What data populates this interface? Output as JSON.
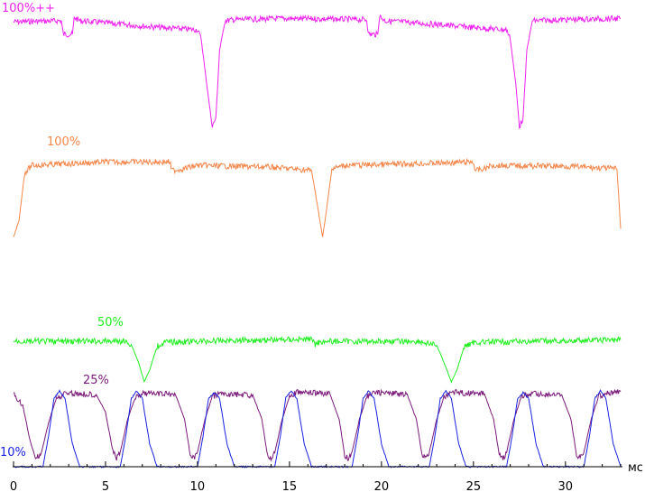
{
  "chart_data": {
    "type": "line",
    "title": "",
    "xlabel": "мс",
    "ylabel": "",
    "xlim": [
      0,
      33
    ],
    "xticks": [
      0,
      5,
      10,
      15,
      20,
      25,
      30
    ],
    "grid": false,
    "legend": "none",
    "series": [
      {
        "name": "100%++",
        "color": "#ee22ee",
        "baseline": 0.96,
        "points": [
          [
            0,
            0.95
          ],
          [
            2.6,
            0.96
          ],
          [
            2.7,
            0.84
          ],
          [
            3.2,
            0.84
          ],
          [
            3.3,
            0.99
          ],
          [
            3.6,
            0.96
          ],
          [
            5,
            0.94
          ],
          [
            8,
            0.9
          ],
          [
            10.0,
            0.88
          ],
          [
            10.2,
            0.8
          ],
          [
            10.5,
            0.4
          ],
          [
            10.8,
            0.02
          ],
          [
            11.0,
            0.1
          ],
          [
            11.2,
            0.7
          ],
          [
            11.5,
            0.96
          ],
          [
            12,
            0.97
          ],
          [
            15,
            0.98
          ],
          [
            19.2,
            0.97
          ],
          [
            19.3,
            0.84
          ],
          [
            19.8,
            0.84
          ],
          [
            19.9,
            1.0
          ],
          [
            20.2,
            0.96
          ],
          [
            22,
            0.94
          ],
          [
            25,
            0.9
          ],
          [
            26.8,
            0.88
          ],
          [
            27.0,
            0.8
          ],
          [
            27.3,
            0.4
          ],
          [
            27.5,
            0.02
          ],
          [
            27.7,
            0.1
          ],
          [
            27.9,
            0.7
          ],
          [
            28.2,
            0.96
          ],
          [
            30,
            0.97
          ],
          [
            33,
            0.98
          ]
        ]
      },
      {
        "name": "100%",
        "color": "#f4864a",
        "baseline": 0.8,
        "points": [
          [
            0,
            0.0
          ],
          [
            0.3,
            0.2
          ],
          [
            0.6,
            0.75
          ],
          [
            1.0,
            0.84
          ],
          [
            3,
            0.86
          ],
          [
            5,
            0.88
          ],
          [
            8.5,
            0.88
          ],
          [
            8.6,
            0.78
          ],
          [
            9.2,
            0.8
          ],
          [
            10,
            0.84
          ],
          [
            14,
            0.82
          ],
          [
            16.2,
            0.78
          ],
          [
            16.5,
            0.4
          ],
          [
            16.8,
            0.0
          ],
          [
            17.0,
            0.3
          ],
          [
            17.3,
            0.8
          ],
          [
            18,
            0.84
          ],
          [
            22,
            0.86
          ],
          [
            25.0,
            0.88
          ],
          [
            25.1,
            0.78
          ],
          [
            25.6,
            0.8
          ],
          [
            26,
            0.84
          ],
          [
            30,
            0.83
          ],
          [
            32.8,
            0.8
          ],
          [
            33.0,
            0.1
          ]
        ]
      },
      {
        "name": "50%",
        "color": "#22ee22",
        "baseline": 0.8,
        "points": [
          [
            0,
            0.82
          ],
          [
            6,
            0.82
          ],
          [
            6.4,
            0.76
          ],
          [
            6.8,
            0.4
          ],
          [
            7.1,
            0.02
          ],
          [
            7.4,
            0.25
          ],
          [
            7.8,
            0.72
          ],
          [
            8.2,
            0.8
          ],
          [
            12,
            0.84
          ],
          [
            16.3,
            0.86
          ],
          [
            16.4,
            0.76
          ],
          [
            16.7,
            0.82
          ],
          [
            22,
            0.82
          ],
          [
            23.0,
            0.74
          ],
          [
            23.4,
            0.4
          ],
          [
            23.8,
            0.02
          ],
          [
            24.1,
            0.25
          ],
          [
            24.5,
            0.72
          ],
          [
            25,
            0.8
          ],
          [
            30,
            0.83
          ],
          [
            33,
            0.85
          ]
        ]
      },
      {
        "name": "25%",
        "color": "#7a1a7a",
        "baseline": 0.9,
        "period": 4.2,
        "phase": 1.2,
        "points": [
          [
            0,
            0.95
          ],
          [
            0.5,
            0.8
          ],
          [
            0.9,
            0.3
          ],
          [
            1.2,
            0.05
          ],
          [
            1.5,
            0.12
          ],
          [
            1.9,
            0.55
          ],
          [
            2.3,
            0.88
          ],
          [
            2.8,
            0.97
          ],
          [
            4.5,
            0.95
          ],
          [
            5.0,
            0.7
          ],
          [
            5.4,
            0.15
          ],
          [
            5.6,
            0.05
          ],
          [
            5.8,
            0.14
          ],
          [
            6.2,
            0.6
          ],
          [
            6.6,
            0.9
          ],
          [
            7.0,
            0.97
          ],
          [
            8.8,
            0.95
          ],
          [
            9.3,
            0.6
          ],
          [
            9.6,
            0.1
          ],
          [
            9.8,
            0.05
          ],
          [
            10.0,
            0.14
          ],
          [
            10.4,
            0.6
          ],
          [
            10.8,
            0.92
          ],
          [
            11.2,
            0.96
          ],
          [
            13.0,
            0.94
          ],
          [
            13.5,
            0.6
          ],
          [
            13.8,
            0.1
          ],
          [
            14.0,
            0.05
          ],
          [
            14.2,
            0.14
          ],
          [
            14.6,
            0.6
          ],
          [
            15.0,
            0.92
          ],
          [
            15.4,
            0.98
          ],
          [
            17.2,
            0.96
          ],
          [
            17.7,
            0.6
          ],
          [
            18.0,
            0.1
          ],
          [
            18.2,
            0.05
          ],
          [
            18.4,
            0.14
          ],
          [
            18.8,
            0.6
          ],
          [
            19.2,
            0.92
          ],
          [
            19.6,
            0.98
          ],
          [
            21.4,
            0.95
          ],
          [
            21.9,
            0.6
          ],
          [
            22.2,
            0.1
          ],
          [
            22.4,
            0.05
          ],
          [
            22.6,
            0.14
          ],
          [
            23.0,
            0.6
          ],
          [
            23.4,
            0.92
          ],
          [
            23.8,
            0.98
          ],
          [
            25.6,
            0.96
          ],
          [
            26.1,
            0.6
          ],
          [
            26.4,
            0.1
          ],
          [
            26.6,
            0.05
          ],
          [
            26.8,
            0.14
          ],
          [
            27.2,
            0.6
          ],
          [
            27.6,
            0.92
          ],
          [
            28.0,
            0.96
          ],
          [
            29.8,
            0.94
          ],
          [
            30.3,
            0.6
          ],
          [
            30.6,
            0.1
          ],
          [
            30.8,
            0.05
          ],
          [
            31.0,
            0.14
          ],
          [
            31.4,
            0.6
          ],
          [
            31.8,
            0.92
          ],
          [
            32.2,
            0.97
          ],
          [
            33,
            0.99
          ]
        ]
      },
      {
        "name": "10%",
        "color": "#1a22e0",
        "baseline": 0.0,
        "points": [
          [
            0,
            0.0
          ],
          [
            1.6,
            0.0
          ],
          [
            1.9,
            0.4
          ],
          [
            2.2,
            0.9
          ],
          [
            2.5,
            1.0
          ],
          [
            2.8,
            0.9
          ],
          [
            3.2,
            0.3
          ],
          [
            3.6,
            0.0
          ],
          [
            5.8,
            0.0
          ],
          [
            6.1,
            0.4
          ],
          [
            6.4,
            0.9
          ],
          [
            6.7,
            1.0
          ],
          [
            7.0,
            0.9
          ],
          [
            7.4,
            0.3
          ],
          [
            7.8,
            0.0
          ],
          [
            10.0,
            0.0
          ],
          [
            10.3,
            0.4
          ],
          [
            10.6,
            0.9
          ],
          [
            10.9,
            0.98
          ],
          [
            11.2,
            0.9
          ],
          [
            11.6,
            0.3
          ],
          [
            12.0,
            0.0
          ],
          [
            14.2,
            0.0
          ],
          [
            14.5,
            0.4
          ],
          [
            14.8,
            0.92
          ],
          [
            15.1,
            1.0
          ],
          [
            15.4,
            0.9
          ],
          [
            15.8,
            0.3
          ],
          [
            16.2,
            0.0
          ],
          [
            18.4,
            0.0
          ],
          [
            18.7,
            0.4
          ],
          [
            19.0,
            0.9
          ],
          [
            19.3,
            1.0
          ],
          [
            19.6,
            0.9
          ],
          [
            20.0,
            0.3
          ],
          [
            20.4,
            0.0
          ],
          [
            22.6,
            0.0
          ],
          [
            22.9,
            0.4
          ],
          [
            23.2,
            0.9
          ],
          [
            23.5,
            1.0
          ],
          [
            23.8,
            0.9
          ],
          [
            24.2,
            0.3
          ],
          [
            24.6,
            0.0
          ],
          [
            26.8,
            0.0
          ],
          [
            27.1,
            0.4
          ],
          [
            27.4,
            0.9
          ],
          [
            27.7,
            0.98
          ],
          [
            28.0,
            0.9
          ],
          [
            28.4,
            0.3
          ],
          [
            28.8,
            0.0
          ],
          [
            31.0,
            0.0
          ],
          [
            31.3,
            0.4
          ],
          [
            31.6,
            0.9
          ],
          [
            31.9,
            1.0
          ],
          [
            32.2,
            0.9
          ],
          [
            32.6,
            0.3
          ],
          [
            33.0,
            0.0
          ]
        ]
      }
    ]
  }
}
